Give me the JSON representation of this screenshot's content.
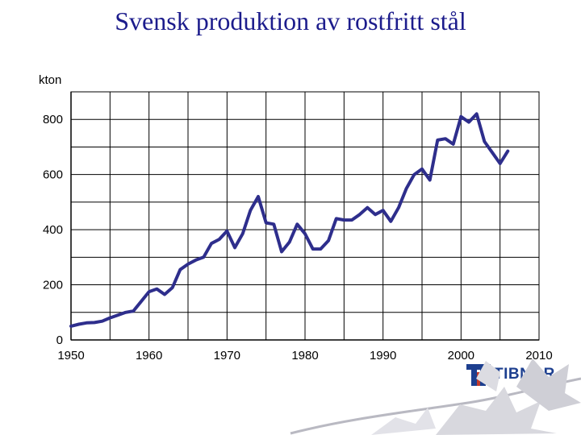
{
  "title": "Svensk produktion av rostfritt stål",
  "logo": {
    "text": "TIBNOR",
    "color": "#1d3f8f"
  },
  "chart_data": {
    "type": "line",
    "title": "Svensk produktion av rostfritt stål",
    "ylabel": "kton",
    "xlabel": "",
    "xlim": [
      1950,
      2010
    ],
    "ylim": [
      0,
      900
    ],
    "x_ticks": [
      1950,
      1960,
      1970,
      1980,
      1990,
      2000,
      2010
    ],
    "y_ticks": [
      0,
      200,
      400,
      600,
      800
    ],
    "grid": true,
    "line_color": "#2e2e8c",
    "x": [
      1950,
      1951,
      1952,
      1953,
      1954,
      1955,
      1956,
      1957,
      1958,
      1959,
      1960,
      1961,
      1962,
      1963,
      1964,
      1965,
      1966,
      1967,
      1968,
      1969,
      1970,
      1971,
      1972,
      1973,
      1974,
      1975,
      1976,
      1977,
      1978,
      1979,
      1980,
      1981,
      1982,
      1983,
      1984,
      1985,
      1986,
      1987,
      1988,
      1989,
      1990,
      1991,
      1992,
      1993,
      1994,
      1995,
      1996,
      1997,
      1998,
      1999,
      2000,
      2001,
      2002,
      2003,
      2004,
      2005,
      2006
    ],
    "y": [
      50,
      57,
      62,
      63,
      68,
      80,
      90,
      100,
      105,
      140,
      175,
      185,
      165,
      190,
      255,
      275,
      290,
      300,
      350,
      365,
      395,
      335,
      385,
      470,
      520,
      425,
      420,
      320,
      355,
      420,
      385,
      330,
      330,
      360,
      440,
      435,
      435,
      455,
      480,
      455,
      470,
      430,
      480,
      550,
      600,
      620,
      580,
      725,
      730,
      710,
      810,
      790,
      820,
      720,
      680,
      640,
      685
    ]
  }
}
